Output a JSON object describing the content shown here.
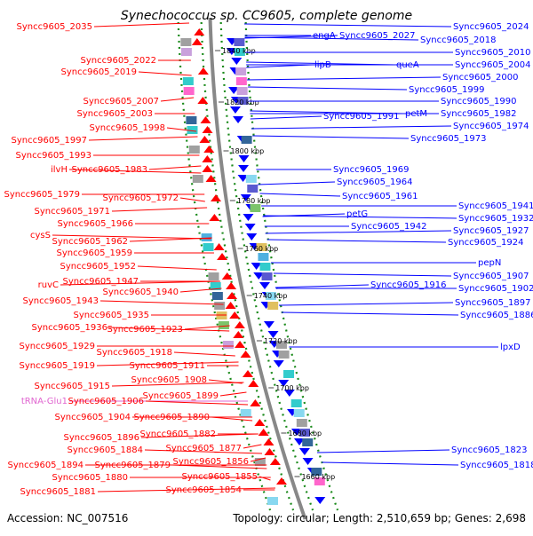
{
  "title": "Synechococcus sp. CC9605, complete genome",
  "footer": {
    "accession": "Accession: NC_007516",
    "topology": "Topology: circular; Length: 2,510,659 bp; Genes: 2,698"
  },
  "colors": {
    "forward": "#ff0000",
    "reverse": "#0000ff",
    "rna": "#e066d0",
    "ruler": "#888888",
    "dots": "#1a8a1a"
  },
  "ticks": [
    "1840 kbp",
    "1820 kbp",
    "1800 kbp",
    "1780 kbp",
    "1760 kbp",
    "1740 kbp",
    "1720 kbp",
    "1700 kbp",
    "1680 kbp",
    "1660 kbp"
  ],
  "left_labels": [
    "Syncc9605_2035",
    "Syncc9605_2022",
    "Syncc9605_2019",
    "Syncc9605_2007",
    "Syncc9605_2003",
    "Syncc9605_1998",
    "Syncc9605_1997",
    "Syncc9605_1993",
    "ilvH",
    "Syncc9605_1983",
    "Syncc9605_1979",
    "Syncc9605_1972",
    "Syncc9605_1971",
    "Syncc9605_1966",
    "cysS",
    "Syncc9605_1962",
    "Syncc9605_1959",
    "Syncc9605_1952",
    "ruvC",
    "Syncc9605_1947",
    "Syncc9605_1943",
    "Syncc9605_1940",
    "Syncc9605_1935",
    "Syncc9605_1936",
    "Syncc9605_1923",
    "Syncc9605_1929",
    "Syncc9605_1918",
    "Syncc9605_1919",
    "Syncc9605_1911",
    "Syncc9605_1908",
    "Syncc9605_1915",
    "tRNA-Glu1",
    "Syncc9605_1906",
    "Syncc9605_1899",
    "Syncc9605_1904",
    "Syncc9605_1890",
    "Syncc9605_1896",
    "Syncc9605_1882",
    "Syncc9605_1884",
    "Syncc9605_1877",
    "Syncc9605_1894",
    "Syncc9605_1879",
    "Syncc9605_1856",
    "Syncc9605_1880",
    "Syncc9605_1855",
    "Syncc9605_1881",
    "Syncc9605_1854"
  ],
  "right_labels": [
    "Syncc9605_2024",
    "engA",
    "Syncc9605_2027",
    "Syncc9605_2018",
    "Syncc9605_2010",
    "lipB",
    "queA",
    "Syncc9605_2004",
    "Syncc9605_2000",
    "Syncc9605_1999",
    "Syncc9605_1990",
    "Syncc9605_1991",
    "petM",
    "Syncc9605_1982",
    "Syncc9605_1974",
    "Syncc9605_1973",
    "Syncc9605_1969",
    "Syncc9605_1964",
    "Syncc9605_1961",
    "Syncc9605_1941",
    "petG",
    "Syncc9605_1932",
    "Syncc9605_1942",
    "Syncc9605_1927",
    "Syncc9605_1924",
    "pepN",
    "Syncc9605_1916",
    "Syncc9605_1907",
    "Syncc9605_1902",
    "Syncc9605_1897",
    "Syncc9605_1886",
    "lpxD",
    "Syncc9605_1823",
    "Syncc9605_1818"
  ]
}
